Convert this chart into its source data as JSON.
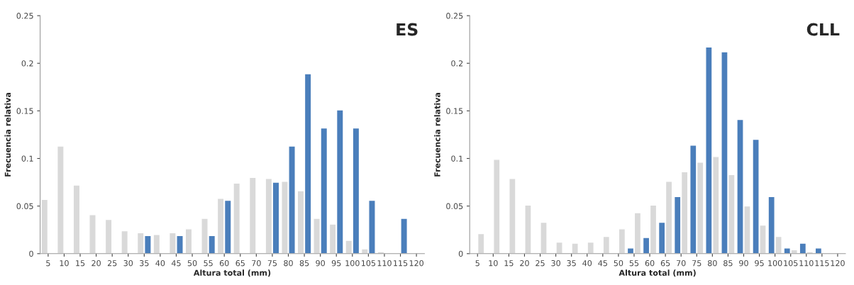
{
  "chart_data": [
    {
      "type": "bar",
      "title": "ES",
      "xlabel": "Altura total (mm)",
      "ylabel": "Frecuencia relativa",
      "categories": [
        "5",
        "10",
        "15",
        "20",
        "25",
        "30",
        "35",
        "40",
        "45",
        "50",
        "55",
        "60",
        "65",
        "70",
        "75",
        "80",
        "85",
        "90",
        "95",
        "100",
        "105",
        "110",
        "115",
        "120"
      ],
      "series": [
        {
          "color": "#d9d9d9",
          "values": [
            0.057,
            0.113,
            0.072,
            0.041,
            0.036,
            0.024,
            0.022,
            0.02,
            0.022,
            0.026,
            0.037,
            0.058,
            0.074,
            0.08,
            0.079,
            0.076,
            0.066,
            0.037,
            0.031,
            0.014,
            0.005,
            0.002,
            0,
            0
          ]
        },
        {
          "color": "#4a7ebb",
          "values": [
            0,
            0,
            0,
            0,
            0,
            0,
            0.019,
            0,
            0.019,
            0,
            0.019,
            0.056,
            0,
            0,
            0.075,
            0.113,
            0.189,
            0.132,
            0.151,
            0.132,
            0.056,
            0,
            0.037,
            0
          ]
        }
      ],
      "ylim": [
        0,
        0.25
      ],
      "yticks": [
        0,
        0.05,
        0.1,
        0.15,
        0.2,
        0.25
      ],
      "grid": false,
      "legend": false
    },
    {
      "type": "bar",
      "title": "CLL",
      "xlabel": "Altura total (mm)",
      "ylabel": "Frecuencia relativa",
      "categories": [
        "5",
        "10",
        "15",
        "20",
        "25",
        "30",
        "35",
        "40",
        "45",
        "50",
        "55",
        "60",
        "65",
        "70",
        "75",
        "80",
        "85",
        "90",
        "95",
        "100",
        "105",
        "110",
        "115",
        "120"
      ],
      "series": [
        {
          "color": "#4a7ebb",
          "values": [
            0,
            0,
            0,
            0,
            0,
            0,
            0,
            0,
            0,
            0,
            0.006,
            0.017,
            0.033,
            0.06,
            0.114,
            0.217,
            0.212,
            0.141,
            0.12,
            0.06,
            0.006,
            0.011,
            0.006,
            0
          ]
        },
        {
          "color": "#d9d9d9",
          "values": [
            0.021,
            0.099,
            0.079,
            0.051,
            0.033,
            0.012,
            0.011,
            0.012,
            0.018,
            0.026,
            0.043,
            0.051,
            0.076,
            0.086,
            0.096,
            0.102,
            0.083,
            0.05,
            0.03,
            0.018,
            0.004,
            0.002,
            0,
            0
          ]
        }
      ],
      "ylim": [
        0,
        0.25
      ],
      "yticks": [
        0,
        0.05,
        0.1,
        0.15,
        0.2,
        0.25
      ],
      "grid": false,
      "legend": false
    }
  ]
}
